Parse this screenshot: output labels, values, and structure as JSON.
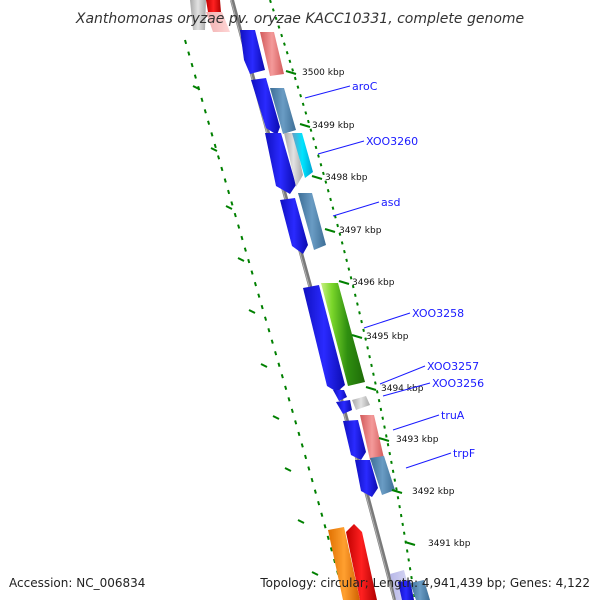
{
  "title": "Xanthomonas oryzae pv. oryzae KACC10331, complete genome",
  "footer": {
    "accession": "Accession: NC_006834",
    "stats": "Topology: circular; Length: 4,941,439 bp; Genes: 4,122"
  },
  "ticks": [
    "3500 kbp",
    "3499 kbp",
    "3498 kbp",
    "3497 kbp",
    "3496 kbp",
    "3495 kbp",
    "3494 kbp",
    "3493 kbp",
    "3492 kbp",
    "3491 kbp"
  ],
  "genes": [
    "aroC",
    "XOO3260",
    "asd",
    "XOO3258",
    "XOO3257",
    "XOO3256",
    "truA",
    "trpF"
  ],
  "colors": {
    "backbone": "#808080",
    "cds": "#0000ff",
    "ring_dots": "#008000",
    "label": "#1a1aff"
  }
}
